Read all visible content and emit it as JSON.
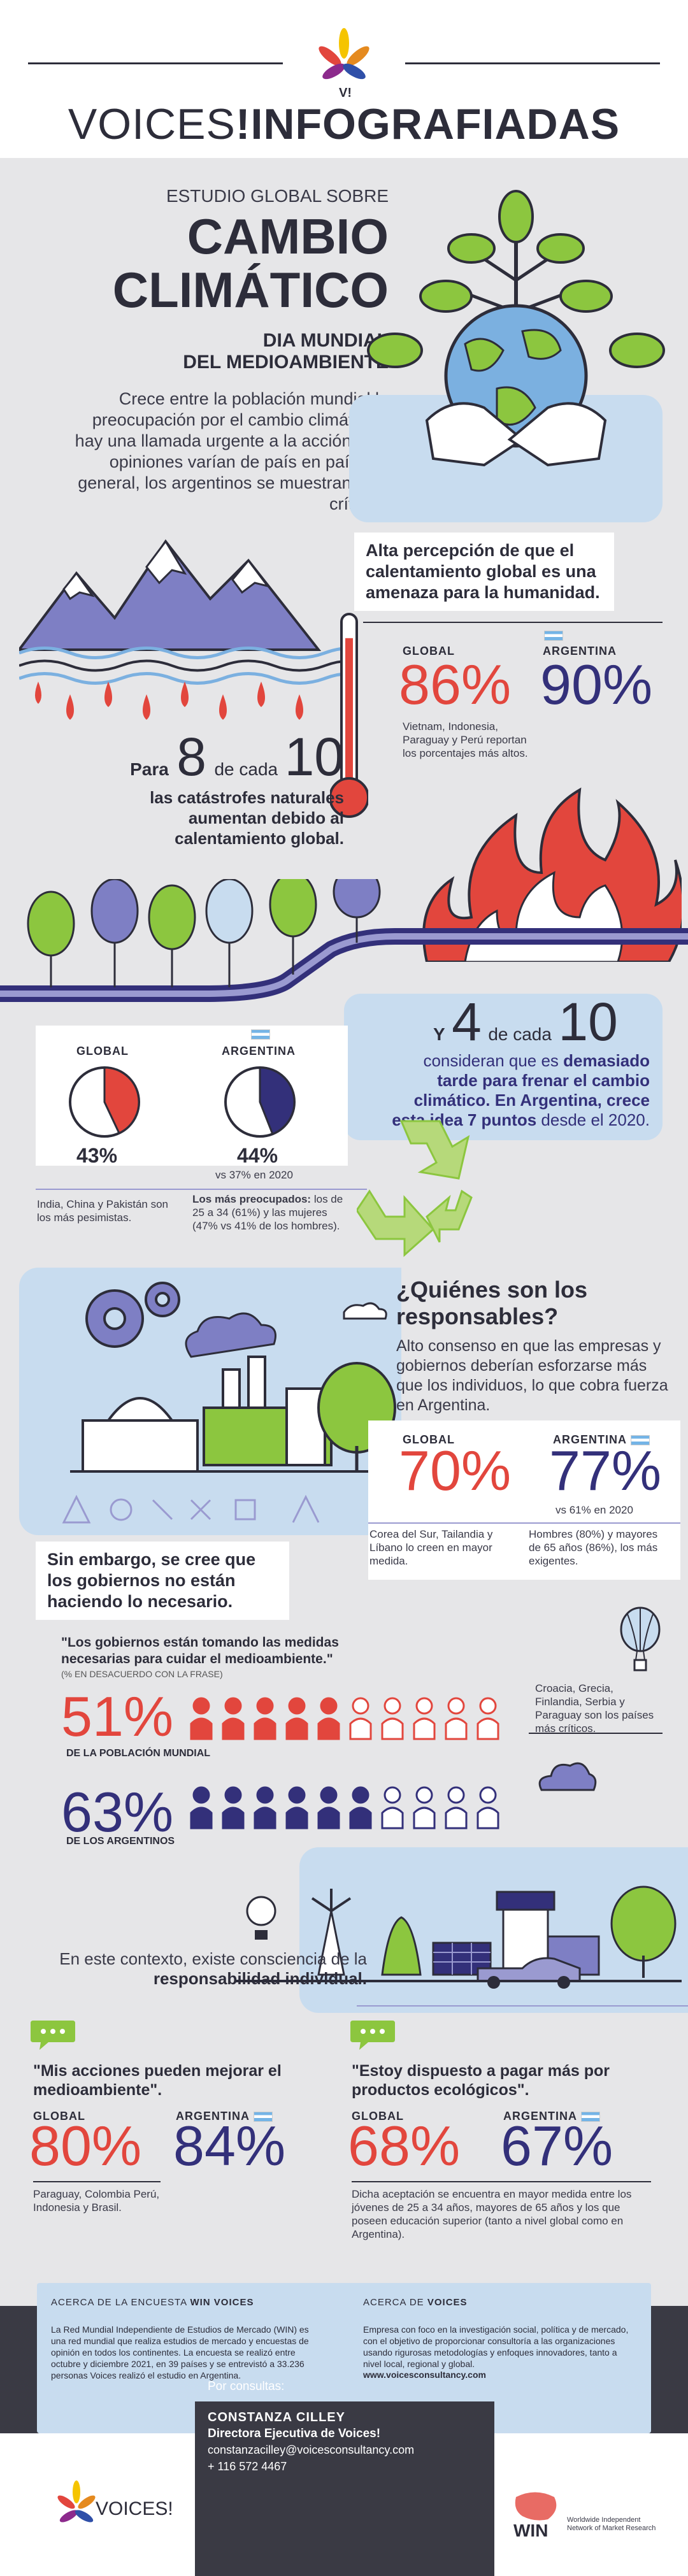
{
  "header": {
    "brand_left": "VOICES",
    "brand_exclaim": "!",
    "brand_right": "INFOGRAFIADAS",
    "logo_text": "V!"
  },
  "title_block": {
    "kicker": "ESTUDIO GLOBAL SOBRE",
    "title_line1": "CAMBIO",
    "title_line2": "CLIMÁTICO",
    "subtitle_line1": "DIA MUNDIAL",
    "subtitle_line2": "DEL MEDIOAMBIENTE",
    "intro": "Crece entre la población mundial la preocupación por el cambio climático y hay una llamada urgente a la acción. Las opiniones varían de país en país. En general, los argentinos se muestran más críticos."
  },
  "threat": {
    "callout": "Alta percepción de que el calentamiento global es una amenaza para la humanidad.",
    "global_label": "GLOBAL",
    "global_value": "86%",
    "argentina_label": "ARGENTINA",
    "argentina_value": "90%",
    "note": "Vietnam, Indonesia, Paraguay y Perú reportan los porcentajes más altos.",
    "global_fraction": 0.86,
    "argentina_fraction": 0.9
  },
  "disasters": {
    "para": "Para",
    "num": "8",
    "de_cada": "de cada",
    "den": "10",
    "text": "las catástrofes naturales aumentan debido al calentamiento global."
  },
  "too_late": {
    "y": "Y",
    "num": "4",
    "de_cada": "de cada",
    "den": "10",
    "text_a": "consideran que es",
    "text_b": "demasiado tarde para frenar el cambio climático.",
    "text_c": "En Argentina, crece esta idea",
    "text_d": "7 puntos",
    "text_e": "desde el 2020.",
    "global_label": "GLOBAL",
    "global_value": "43%",
    "global_fraction": 0.43,
    "argentina_label": "ARGENTINA",
    "argentina_value": "44%",
    "argentina_fraction": 0.44,
    "argentina_vs": "vs 37% en 2020",
    "global_note": "India, China y Pakistán son los más pesimistas.",
    "arg_note_bold": "Los más preocupados:",
    "arg_note": "los de 25 a 34 (61%) y las mujeres (47% vs 41% de los hombres)."
  },
  "responsible": {
    "title": "¿Quiénes son los responsables?",
    "text": "Alto consenso en que las empresas y gobiernos deberían esforzarse más que los individuos, lo que cobra fuerza en Argentina.",
    "global_label": "GLOBAL",
    "global_value": "70%",
    "argentina_label": "ARGENTINA",
    "argentina_value": "77%",
    "argentina_vs": "vs 61% en 2020",
    "global_note": "Corea del Sur, Tailandia y Líbano lo creen en mayor medida.",
    "arg_note": "Hombres (80%) y mayores de 65 años (86%), los más exigentes.",
    "callout": "Sin embargo, se cree que los gobiernos no están haciendo lo necesario."
  },
  "governments": {
    "quote": "\"Los gobiernos están tomando las medidas necesarias para cuidar el medioambiente.\"",
    "quote_note": "(% EN DESACUERDO CON LA FRASE)",
    "world_value": "51%",
    "world_label": "DE LA POBLACIÓN MUNDIAL",
    "world_fraction": 0.51,
    "arg_value": "63%",
    "arg_label": "DE LOS ARGENTINOS",
    "arg_fraction": 0.63,
    "side_note": "Croacia, Grecia, Finlandia, Serbia y Paraguay son los países más críticos."
  },
  "individual": {
    "text_a": "En este contexto, existe consciencia de la",
    "text_b": "responsabilidad individual.",
    "q1": "\"Mis acciones pueden mejorar el medioambiente\".",
    "q1_global_label": "GLOBAL",
    "q1_global_value": "80%",
    "q1_arg_label": "ARGENTINA",
    "q1_arg_value": "84%",
    "q1_note": "Paraguay, Colombia Perú, Indonesia y Brasil.",
    "q2": "\"Estoy dispuesto a pagar más por productos ecológicos\".",
    "q2_global_label": "GLOBAL",
    "q2_global_value": "68%",
    "q2_arg_label": "ARGENTINA",
    "q2_arg_value": "67%",
    "q2_note": "Dicha aceptación se encuentra en mayor medida entre los jóvenes de 25 a 34 años, mayores de 65 años y los que poseen educación superior (tanto a nivel global como en Argentina)."
  },
  "about": {
    "left_title_a": "ACERCA DE LA ENCUESTA",
    "left_title_b": "WIN VOICES",
    "left_text": "La Red Mundial Independiente de Estudios de Mercado (WIN) es una red mundial que realiza estudios de mercado y encuestas de opinión en todos los continentes. La encuesta se realizó entre octubre y diciembre 2021, en 39 países y se entrevistó a 33.236 personas Voices realizó el estudio en Argentina.",
    "right_title_a": "ACERCA DE",
    "right_title_b": "VOICES",
    "right_text": "Empresa con foco en la investigación social, política y de mercado, con el objetivo de proporcionar consultoría a las organizaciones usando rigurosas metodologías y enfoques innovadores, tanto a nivel local, regional y global.",
    "url": "www.voicesconsultancy.com"
  },
  "contact": {
    "heading": "Por consultas:",
    "name": "CONSTANZA CILLEY",
    "role": "Directora Ejecutiva de Voices!",
    "email": "constanzacilley@voicesconsultancy.com",
    "phone": "+ 116 572 4467",
    "footer_brand": "VOICES!",
    "win_brand": "WIN",
    "win_sub": "Worldwide Independent Network of Market Research"
  },
  "colors": {
    "red": "#e2463d",
    "navy": "#33307a",
    "light_blue": "#c8dcef",
    "dark": "#2d2d3a"
  }
}
